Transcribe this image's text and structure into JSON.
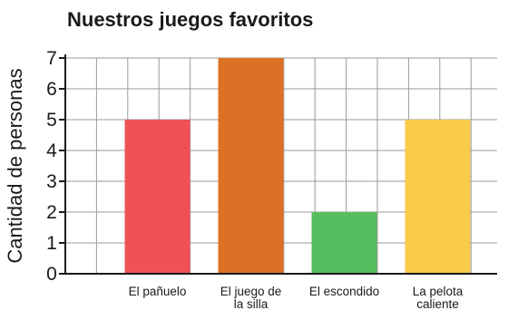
{
  "chart_data": {
    "type": "bar",
    "title": "Nuestros juegos favoritos",
    "xlabel": "",
    "ylabel": "Cantidad de personas",
    "categories": [
      "El pañuelo",
      "El juego de la silla",
      "El escondido",
      "La pelota caliente"
    ],
    "category_lines": [
      [
        "El pañuelo"
      ],
      [
        "El juego de",
        "la silla"
      ],
      [
        "El escondido"
      ],
      [
        "La pelota",
        "caliente"
      ]
    ],
    "values": [
      5,
      7,
      2,
      5
    ],
    "colors": [
      "#ee5257",
      "#dc7126",
      "#56bd5e",
      "#f8cb49"
    ],
    "ylim": [
      0,
      7
    ],
    "yticks": [
      0,
      1,
      2,
      3,
      4,
      5,
      6,
      7
    ],
    "grid": true
  }
}
